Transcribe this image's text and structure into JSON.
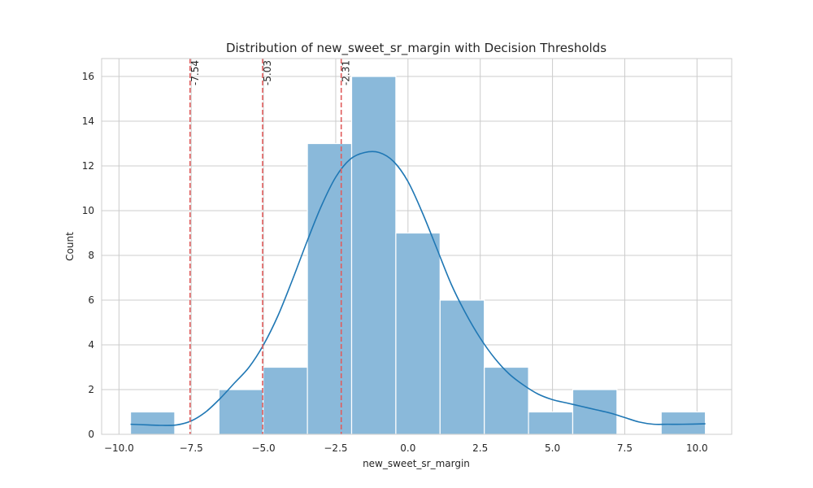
{
  "chart_data": {
    "type": "bar",
    "title": "Distribution of new_sweet_sr_margin with Decision Thresholds",
    "xlabel": "new_sweet_sr_margin",
    "ylabel": "Count",
    "xlim": [
      -10.6,
      11.2
    ],
    "ylim": [
      0,
      16.8
    ],
    "grid": true,
    "bin_edges": [
      -9.6,
      -8.07,
      -6.54,
      -5.01,
      -3.48,
      -1.95,
      -0.42,
      1.11,
      2.64,
      4.17,
      5.7,
      7.23,
      8.76,
      10.29
    ],
    "counts": [
      1,
      0,
      2,
      3,
      13,
      16,
      9,
      6,
      3,
      1,
      2,
      0,
      1
    ],
    "x_ticks": [
      -10.0,
      -7.5,
      -5.0,
      -2.5,
      0.0,
      2.5,
      5.0,
      7.5,
      10.0
    ],
    "x_tick_labels": [
      "−10.0",
      "−7.5",
      "−5.0",
      "−2.5",
      "0.0",
      "2.5",
      "5.0",
      "7.5",
      "10.0"
    ],
    "y_ticks": [
      0,
      2,
      4,
      6,
      8,
      10,
      12,
      14,
      16
    ],
    "y_tick_labels": [
      "0",
      "2",
      "4",
      "6",
      "8",
      "10",
      "12",
      "14",
      "16"
    ],
    "kde": {
      "x": [
        -9.6,
        -9.0,
        -8.5,
        -8.0,
        -7.5,
        -7.0,
        -6.5,
        -6.0,
        -5.5,
        -5.0,
        -4.5,
        -4.0,
        -3.5,
        -3.0,
        -2.5,
        -2.0,
        -1.5,
        -1.0,
        -0.5,
        0.0,
        0.5,
        1.0,
        1.5,
        2.0,
        2.5,
        3.0,
        3.5,
        4.0,
        4.5,
        5.0,
        5.5,
        6.0,
        6.5,
        7.0,
        7.5,
        8.0,
        8.5,
        9.0,
        9.5,
        10.29
      ],
      "y": [
        0.45,
        0.42,
        0.4,
        0.42,
        0.6,
        1.0,
        1.6,
        2.3,
        3.0,
        4.0,
        5.3,
        6.9,
        8.6,
        10.2,
        11.5,
        12.3,
        12.6,
        12.6,
        12.2,
        11.3,
        9.9,
        8.3,
        6.7,
        5.4,
        4.3,
        3.4,
        2.7,
        2.2,
        1.8,
        1.55,
        1.4,
        1.25,
        1.1,
        0.95,
        0.75,
        0.55,
        0.45,
        0.45,
        0.45,
        0.47
      ]
    },
    "thresholds": [
      {
        "value": -7.54,
        "label": "-7.54"
      },
      {
        "value": -5.03,
        "label": "-5.03"
      },
      {
        "value": -2.31,
        "label": "-2.31"
      }
    ]
  }
}
